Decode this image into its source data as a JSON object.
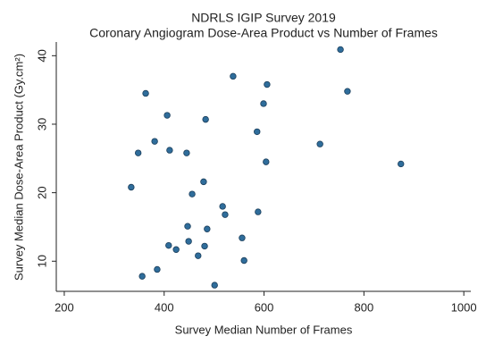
{
  "chart_data": {
    "type": "scatter",
    "title": "NDRLS IGIP Survey 2019",
    "subtitle": "Coronary Angiogram Dose-Area Product vs Number of Frames",
    "x_label": "Survey Median Number of Frames",
    "y_label": "Survey Median Dose-Area Product (Gy.cm²)",
    "color": "#2f6d9b",
    "x": [
      753,
      538,
      606,
      767,
      363,
      599,
      406,
      483,
      586,
      381,
      712,
      411,
      348,
      445,
      604,
      874,
      479,
      334,
      456,
      517,
      522,
      588,
      447,
      486,
      556,
      449,
      409,
      481,
      424,
      468,
      560,
      386,
      356,
      501
    ],
    "values": [
      40.9,
      37.0,
      35.8,
      34.8,
      34.5,
      33.0,
      31.3,
      30.7,
      28.9,
      27.5,
      27.1,
      26.2,
      25.8,
      25.8,
      24.5,
      24.2,
      21.6,
      20.8,
      19.8,
      18.0,
      16.8,
      17.2,
      15.1,
      14.7,
      13.4,
      12.9,
      12.3,
      12.2,
      11.7,
      10.8,
      10.1,
      8.8,
      7.8,
      6.5
    ],
    "xlim": [
      184,
      1014
    ],
    "ylim": [
      5.6,
      42
    ],
    "xticks": [
      200,
      400,
      600,
      800,
      1000
    ],
    "yticks": [
      10,
      20,
      30,
      40
    ]
  }
}
